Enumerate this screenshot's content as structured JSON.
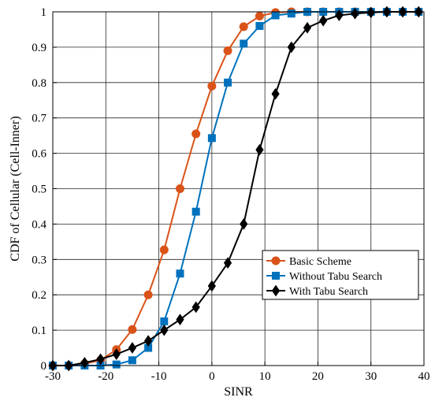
{
  "chart_data": {
    "type": "line",
    "xlabel": "SINR",
    "ylabel": "CDF of Cellular (Cell-Inner)",
    "xlim": [
      -30,
      40
    ],
    "ylim": [
      0,
      1
    ],
    "xticks": [
      "-30",
      "-20",
      "-10",
      "0",
      "10",
      "20",
      "30",
      "40"
    ],
    "yticks": [
      "0",
      "0.1",
      "0.2",
      "0.3",
      "0.4",
      "0.5",
      "0.6",
      "0.7",
      "0.8",
      "0.9",
      "1"
    ],
    "grid": true,
    "legend_position": "bottom-right",
    "series": [
      {
        "name": "Basic Scheme",
        "color": "#D95319",
        "marker": "circle",
        "x": [
          -30,
          -27,
          -24,
          -21,
          -18,
          -15,
          -12,
          -9,
          -6,
          -3,
          0,
          3,
          6,
          9,
          12,
          15,
          18,
          21,
          24,
          27,
          30,
          33,
          36,
          39
        ],
        "y": [
          0,
          0,
          0.005,
          0.015,
          0.045,
          0.102,
          0.2,
          0.327,
          0.5,
          0.655,
          0.79,
          0.89,
          0.958,
          0.988,
          0.998,
          1,
          1,
          1,
          1,
          1,
          1,
          1,
          1,
          1
        ]
      },
      {
        "name": "Without Tabu Search",
        "color": "#0072BD",
        "marker": "square",
        "x": [
          -30,
          -27,
          -24,
          -21,
          -18,
          -15,
          -12,
          -9,
          -6,
          -3,
          0,
          3,
          6,
          9,
          12,
          15,
          18,
          21,
          24,
          27,
          30,
          33,
          36,
          39
        ],
        "y": [
          0,
          0,
          0,
          0,
          0.003,
          0.015,
          0.05,
          0.125,
          0.26,
          0.435,
          0.643,
          0.8,
          0.91,
          0.96,
          0.99,
          0.995,
          1,
          1,
          1,
          1,
          1,
          1,
          1,
          1
        ]
      },
      {
        "name": "With Tabu Search",
        "color": "#000000",
        "marker": "diamond",
        "x": [
          -30,
          -27,
          -24,
          -21,
          -18,
          -15,
          -12,
          -9,
          -6,
          -3,
          0,
          3,
          6,
          9,
          12,
          15,
          18,
          21,
          24,
          27,
          30,
          33,
          36,
          39
        ],
        "y": [
          0,
          0,
          0.008,
          0.018,
          0.032,
          0.05,
          0.07,
          0.1,
          0.13,
          0.165,
          0.225,
          0.29,
          0.4,
          0.61,
          0.768,
          0.9,
          0.955,
          0.975,
          0.99,
          0.995,
          0.998,
          1,
          1,
          1
        ]
      }
    ]
  }
}
